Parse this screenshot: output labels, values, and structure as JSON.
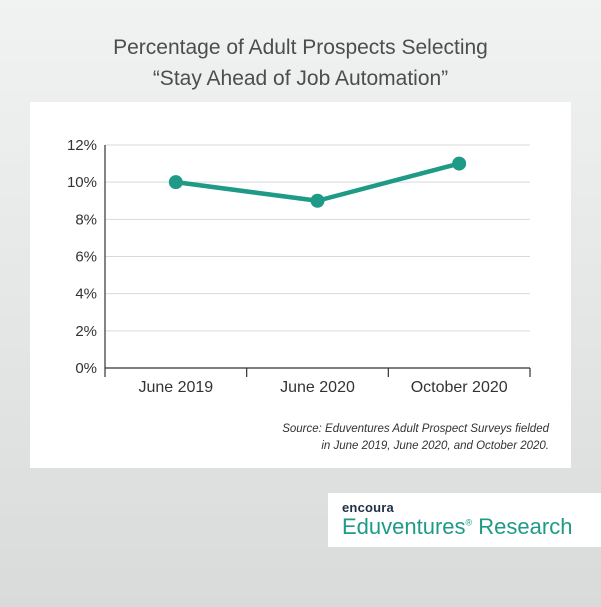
{
  "title_lines": [
    "Percentage of Adult Prospects Selecting",
    "“Stay Ahead of Job Automation”"
  ],
  "source": {
    "lines": [
      "Source: Eduventures Adult Prospect Surveys fielded",
      "in June 2019, June 2020, and October 2020."
    ]
  },
  "brand": {
    "small": "encoura",
    "name": "Eduventures",
    "reg": "®",
    "suffix": " Research"
  },
  "colors": {
    "line": "#1f9a87",
    "axis": "#333333",
    "grid": "#d9d9d9",
    "brand_text": "#1f9a87"
  },
  "chart_data": {
    "type": "line",
    "categories": [
      "June 2019",
      "June 2020",
      "October 2020"
    ],
    "series": [
      {
        "values": [
          10,
          9,
          11
        ]
      }
    ],
    "yticks": [
      "0%",
      "2%",
      "4%",
      "6%",
      "8%",
      "10%",
      "12%"
    ],
    "ylim": [
      0,
      12
    ],
    "grid": true,
    "xlabel": "",
    "ylabel": "",
    "unit": "%"
  }
}
